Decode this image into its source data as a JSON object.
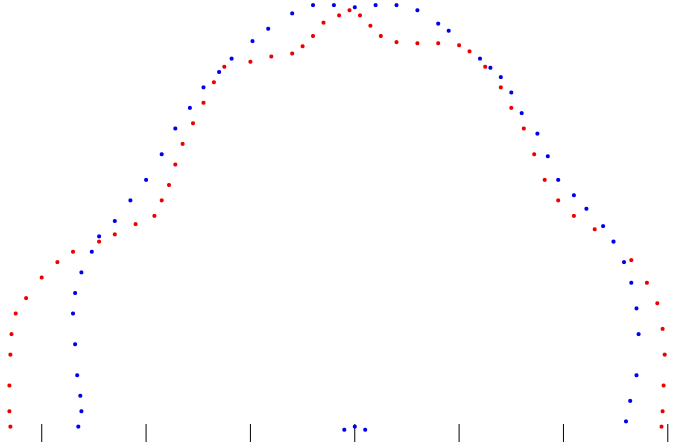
{
  "chart_data": {
    "type": "scatter",
    "grid": false,
    "xlim": [
      -3.4,
      3.05
    ],
    "ylim": [
      -0.1,
      4.2
    ],
    "ticks": {
      "x": [
        -3,
        -2,
        -1,
        0,
        1,
        2,
        3
      ],
      "labels_visible": false
    },
    "series": [
      {
        "color": "#0000ee",
        "points": [
          [
            -2.65,
            0.05
          ],
          [
            -2.62,
            0.2
          ],
          [
            -2.63,
            0.35
          ],
          [
            -2.66,
            0.55
          ],
          [
            -2.68,
            0.85
          ],
          [
            -2.7,
            1.15
          ],
          [
            -2.68,
            1.35
          ],
          [
            -2.62,
            1.55
          ],
          [
            -2.52,
            1.75
          ],
          [
            -2.45,
            1.9
          ],
          [
            -2.3,
            2.05
          ],
          [
            -2.15,
            2.25
          ],
          [
            -2.0,
            2.45
          ],
          [
            -1.85,
            2.7
          ],
          [
            -1.72,
            2.95
          ],
          [
            -1.58,
            3.15
          ],
          [
            -1.45,
            3.35
          ],
          [
            -1.3,
            3.5
          ],
          [
            -1.18,
            3.63
          ],
          [
            -0.98,
            3.8
          ],
          [
            -0.83,
            3.92
          ],
          [
            -0.6,
            4.07
          ],
          [
            -0.4,
            4.15
          ],
          [
            -0.2,
            4.15
          ],
          [
            0.0,
            4.13
          ],
          [
            0.2,
            4.15
          ],
          [
            0.4,
            4.15
          ],
          [
            0.6,
            4.1
          ],
          [
            0.8,
            3.97
          ],
          [
            0.9,
            3.9
          ],
          [
            1.2,
            3.63
          ],
          [
            1.3,
            3.54
          ],
          [
            1.4,
            3.45
          ],
          [
            1.5,
            3.3
          ],
          [
            1.6,
            3.1
          ],
          [
            1.75,
            2.9
          ],
          [
            1.85,
            2.68
          ],
          [
            1.95,
            2.45
          ],
          [
            2.1,
            2.3
          ],
          [
            2.22,
            2.17
          ],
          [
            2.38,
            2.0
          ],
          [
            2.48,
            1.85
          ],
          [
            2.58,
            1.65
          ],
          [
            2.65,
            1.45
          ],
          [
            2.7,
            1.2
          ],
          [
            2.72,
            0.95
          ],
          [
            2.7,
            0.55
          ],
          [
            2.64,
            0.3
          ],
          [
            2.6,
            0.1
          ],
          [
            -0.1,
            0.02
          ],
          [
            0.0,
            0.05
          ],
          [
            0.1,
            0.02
          ]
        ]
      },
      {
        "color": "#ee0000",
        "points": [
          [
            -3.3,
            0.05
          ],
          [
            -3.31,
            0.2
          ],
          [
            -3.31,
            0.45
          ],
          [
            -3.3,
            0.75
          ],
          [
            -3.29,
            0.95
          ],
          [
            -3.25,
            1.15
          ],
          [
            -3.15,
            1.3
          ],
          [
            -3.0,
            1.5
          ],
          [
            -2.85,
            1.65
          ],
          [
            -2.7,
            1.75
          ],
          [
            -2.45,
            1.85
          ],
          [
            -2.3,
            1.92
          ],
          [
            -2.1,
            2.02
          ],
          [
            -1.92,
            2.1
          ],
          [
            -1.85,
            2.25
          ],
          [
            -1.78,
            2.4
          ],
          [
            -1.72,
            2.6
          ],
          [
            -1.65,
            2.8
          ],
          [
            -1.55,
            3.0
          ],
          [
            -1.45,
            3.2
          ],
          [
            -1.35,
            3.4
          ],
          [
            -1.25,
            3.55
          ],
          [
            -1.0,
            3.6
          ],
          [
            -0.8,
            3.65
          ],
          [
            -0.6,
            3.68
          ],
          [
            -0.5,
            3.75
          ],
          [
            -0.4,
            3.85
          ],
          [
            -0.3,
            3.98
          ],
          [
            -0.15,
            4.05
          ],
          [
            -0.05,
            4.1
          ],
          [
            0.05,
            4.05
          ],
          [
            0.15,
            3.95
          ],
          [
            0.25,
            3.85
          ],
          [
            0.4,
            3.79
          ],
          [
            0.6,
            3.78
          ],
          [
            0.8,
            3.78
          ],
          [
            1.0,
            3.76
          ],
          [
            1.1,
            3.7
          ],
          [
            1.25,
            3.55
          ],
          [
            1.4,
            3.35
          ],
          [
            1.5,
            3.15
          ],
          [
            1.62,
            2.95
          ],
          [
            1.72,
            2.7
          ],
          [
            1.82,
            2.45
          ],
          [
            1.95,
            2.25
          ],
          [
            2.1,
            2.1
          ],
          [
            2.3,
            1.97
          ],
          [
            2.48,
            1.85
          ],
          [
            2.65,
            1.67
          ],
          [
            2.8,
            1.45
          ],
          [
            2.9,
            1.25
          ],
          [
            2.95,
            1.0
          ],
          [
            2.97,
            0.75
          ],
          [
            2.96,
            0.45
          ],
          [
            2.95,
            0.2
          ],
          [
            2.94,
            0.05
          ]
        ]
      }
    ]
  }
}
